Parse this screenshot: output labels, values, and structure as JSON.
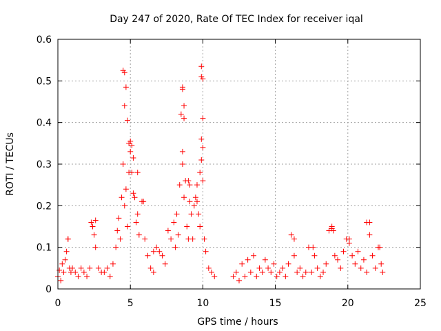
{
  "chart_data": {
    "type": "scatter",
    "title": "Day 247 of 2020, Rate Of TEC Index for receiver iqal",
    "xlabel": "GPS time / hours",
    "ylabel": "ROTI / TECUs",
    "xlim": [
      0,
      25
    ],
    "ylim": [
      0,
      0.6
    ],
    "x_ticks": [
      0,
      5,
      10,
      15,
      20,
      25
    ],
    "x_tick_labels": [
      "0",
      "5",
      "10",
      "15",
      "20",
      "25"
    ],
    "y_ticks": [
      0,
      0.1,
      0.2,
      0.3,
      0.4,
      0.5,
      0.6
    ],
    "y_tick_labels": [
      "0",
      "0.1",
      "0.2",
      "0.3",
      "0.4",
      "0.5",
      "0.6"
    ],
    "grid": true,
    "marker": "plus",
    "color": "#ff0000",
    "series": [
      {
        "name": "ROTI",
        "x": [
          0.0,
          0.1,
          0.2,
          0.3,
          0.4,
          0.5,
          0.6,
          0.7,
          0.8,
          0.9,
          1.0,
          1.2,
          1.4,
          1.6,
          1.8,
          2.0,
          2.2,
          2.4,
          2.5,
          2.6,
          2.8,
          3.0,
          3.2,
          3.4,
          3.6,
          3.8,
          4.0,
          4.1,
          4.2,
          4.3,
          4.4,
          4.5,
          4.6,
          4.7,
          4.8,
          4.9,
          5.0,
          5.1,
          5.2,
          5.3,
          5.4,
          5.5,
          5.6,
          5.8,
          6.0,
          6.2,
          6.4,
          6.6,
          6.8,
          7.0,
          7.2,
          7.4,
          7.6,
          7.8,
          8.0,
          8.1,
          8.2,
          8.3,
          8.4,
          8.5,
          8.6,
          8.7,
          8.8,
          8.9,
          9.0,
          9.1,
          9.2,
          9.3,
          9.4,
          9.5,
          9.6,
          9.7,
          9.8,
          9.9,
          10.0,
          10.1,
          10.2,
          10.4,
          10.6,
          10.8,
          12.1,
          12.3,
          12.5,
          12.7,
          12.9,
          13.1,
          13.3,
          13.5,
          13.7,
          13.9,
          14.1,
          14.3,
          14.5,
          14.7,
          14.9,
          15.1,
          15.3,
          15.5,
          15.7,
          15.9,
          16.1,
          16.3,
          16.5,
          16.7,
          16.9,
          17.1,
          17.3,
          17.5,
          17.7,
          17.9,
          18.1,
          18.3,
          18.5,
          18.7,
          18.9,
          19.1,
          19.3,
          19.5,
          19.7,
          19.9,
          20.1,
          20.3,
          20.5,
          20.7,
          20.9,
          21.1,
          21.3,
          21.5,
          21.7,
          21.9,
          22.1,
          22.3,
          22.4,
          4.5,
          4.6,
          4.7,
          4.6,
          4.8,
          4.9,
          5.0,
          5.1,
          5.2,
          5.5,
          5.9,
          8.6,
          8.6,
          8.7,
          8.7,
          8.6,
          9.0,
          9.1,
          9.9,
          9.9,
          10.0,
          10.0,
          9.9,
          10.0,
          9.8,
          9.6,
          0.7,
          2.3,
          2.6,
          6.6,
          16.3,
          17.6,
          18.9,
          19.0,
          20.1,
          21.3,
          21.5,
          22.2
        ],
        "y": [
          0.03,
          0.045,
          0.02,
          0.06,
          0.04,
          0.07,
          0.09,
          0.12,
          0.05,
          0.04,
          0.05,
          0.04,
          0.03,
          0.05,
          0.04,
          0.03,
          0.05,
          0.15,
          0.13,
          0.1,
          0.05,
          0.04,
          0.04,
          0.05,
          0.03,
          0.06,
          0.1,
          0.14,
          0.17,
          0.12,
          0.22,
          0.3,
          0.2,
          0.24,
          0.15,
          0.28,
          0.33,
          0.28,
          0.23,
          0.22,
          0.16,
          0.18,
          0.13,
          0.21,
          0.12,
          0.08,
          0.05,
          0.04,
          0.1,
          0.09,
          0.08,
          0.06,
          0.14,
          0.12,
          0.16,
          0.1,
          0.18,
          0.13,
          0.25,
          0.42,
          0.3,
          0.22,
          0.26,
          0.15,
          0.12,
          0.25,
          0.18,
          0.12,
          0.2,
          0.22,
          0.25,
          0.18,
          0.15,
          0.31,
          0.26,
          0.12,
          0.09,
          0.05,
          0.04,
          0.03,
          0.03,
          0.04,
          0.02,
          0.06,
          0.03,
          0.07,
          0.04,
          0.08,
          0.03,
          0.05,
          0.04,
          0.07,
          0.05,
          0.04,
          0.06,
          0.03,
          0.04,
          0.05,
          0.03,
          0.06,
          0.13,
          0.08,
          0.04,
          0.05,
          0.03,
          0.04,
          0.1,
          0.04,
          0.08,
          0.05,
          0.03,
          0.04,
          0.06,
          0.14,
          0.15,
          0.08,
          0.07,
          0.05,
          0.09,
          0.12,
          0.11,
          0.08,
          0.06,
          0.09,
          0.05,
          0.07,
          0.04,
          0.16,
          0.08,
          0.05,
          0.1,
          0.06,
          0.04,
          0.525,
          0.52,
          0.485,
          0.44,
          0.405,
          0.35,
          0.355,
          0.345,
          0.315,
          0.28,
          0.21,
          0.485,
          0.48,
          0.44,
          0.41,
          0.33,
          0.26,
          0.21,
          0.535,
          0.51,
          0.505,
          0.41,
          0.36,
          0.34,
          0.28,
          0.21,
          0.12,
          0.16,
          0.165,
          0.09,
          0.12,
          0.1,
          0.145,
          0.14,
          0.12,
          0.16,
          0.13,
          0.1
        ]
      }
    ]
  }
}
